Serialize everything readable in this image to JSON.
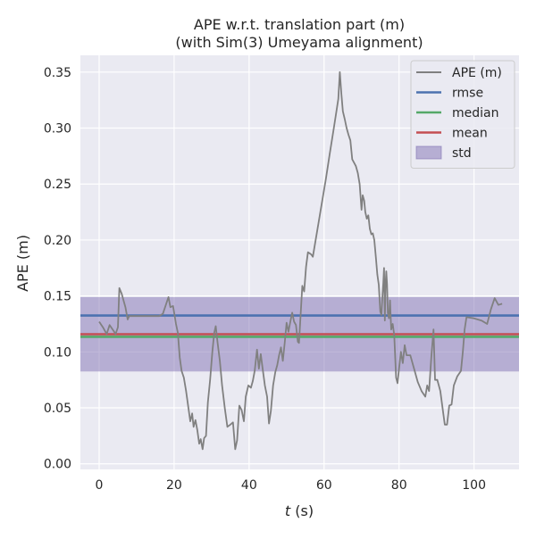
{
  "chart_data": {
    "type": "line",
    "title": "APE w.r.t. translation part (m)",
    "subtitle": "(with Sim(3) Umeyama alignment)",
    "xlabel_var": "t",
    "xlabel_unit": "(s)",
    "ylabel": "APE (m)",
    "xlim": [
      -5,
      112
    ],
    "ylim": [
      -0.005,
      0.365
    ],
    "xticks": [
      0,
      20,
      40,
      60,
      80,
      100
    ],
    "yticks": [
      0.0,
      0.05,
      0.1,
      0.15,
      0.2,
      0.25,
      0.3,
      0.35
    ],
    "grid": true,
    "legend_position": "top-right",
    "legend": [
      {
        "label": "APE (m)",
        "kind": "line",
        "color": "#808080"
      },
      {
        "label": "rmse",
        "kind": "line",
        "color": "#4c72b0"
      },
      {
        "label": "median",
        "kind": "line",
        "color": "#55a868"
      },
      {
        "label": "mean",
        "kind": "line",
        "color": "#c44e52"
      },
      {
        "label": "std",
        "kind": "patch",
        "color": "#8172b3"
      }
    ],
    "stats": {
      "rmse": 0.1325,
      "median": 0.1135,
      "mean": 0.1158,
      "std_band": [
        0.0825,
        0.149
      ]
    },
    "series": [
      {
        "name": "APE (m)",
        "color": "#808080",
        "points": [
          [
            0.0,
            0.127
          ],
          [
            1.0,
            0.122
          ],
          [
            2.0,
            0.116
          ],
          [
            2.8,
            0.124
          ],
          [
            3.6,
            0.12
          ],
          [
            4.4,
            0.116
          ],
          [
            5.0,
            0.122
          ],
          [
            5.4,
            0.157
          ],
          [
            6.0,
            0.152
          ],
          [
            7.0,
            0.14
          ],
          [
            7.6,
            0.129
          ],
          [
            8.0,
            0.132
          ],
          [
            10,
            0.132
          ],
          [
            12,
            0.132
          ],
          [
            14,
            0.132
          ],
          [
            16,
            0.132
          ],
          [
            17.0,
            0.134
          ],
          [
            18.5,
            0.149
          ],
          [
            19.0,
            0.14
          ],
          [
            19.7,
            0.141
          ],
          [
            20.5,
            0.125
          ],
          [
            21.0,
            0.117
          ],
          [
            21.5,
            0.095
          ],
          [
            22.0,
            0.083
          ],
          [
            22.6,
            0.077
          ],
          [
            23.2,
            0.065
          ],
          [
            23.8,
            0.05
          ],
          [
            24.3,
            0.038
          ],
          [
            24.8,
            0.045
          ],
          [
            25.2,
            0.033
          ],
          [
            25.7,
            0.039
          ],
          [
            26.2,
            0.03
          ],
          [
            26.7,
            0.018
          ],
          [
            27.1,
            0.022
          ],
          [
            27.6,
            0.013
          ],
          [
            28.0,
            0.023
          ],
          [
            28.5,
            0.025
          ],
          [
            29.0,
            0.055
          ],
          [
            29.6,
            0.075
          ],
          [
            30.2,
            0.1
          ],
          [
            30.7,
            0.117
          ],
          [
            31.1,
            0.123
          ],
          [
            31.6,
            0.108
          ],
          [
            32.2,
            0.092
          ],
          [
            32.8,
            0.07
          ],
          [
            33.5,
            0.05
          ],
          [
            34.2,
            0.033
          ],
          [
            35.0,
            0.035
          ],
          [
            35.7,
            0.037
          ],
          [
            36.3,
            0.013
          ],
          [
            36.8,
            0.021
          ],
          [
            37.4,
            0.052
          ],
          [
            38.0,
            0.048
          ],
          [
            38.6,
            0.038
          ],
          [
            39.1,
            0.06
          ],
          [
            39.8,
            0.07
          ],
          [
            40.5,
            0.068
          ],
          [
            41.0,
            0.074
          ],
          [
            41.5,
            0.083
          ],
          [
            42.1,
            0.102
          ],
          [
            42.6,
            0.085
          ],
          [
            43.1,
            0.098
          ],
          [
            43.6,
            0.085
          ],
          [
            44.2,
            0.07
          ],
          [
            44.8,
            0.06
          ],
          [
            45.3,
            0.036
          ],
          [
            45.8,
            0.047
          ],
          [
            46.4,
            0.07
          ],
          [
            47.0,
            0.082
          ],
          [
            47.5,
            0.088
          ],
          [
            48.0,
            0.097
          ],
          [
            48.5,
            0.104
          ],
          [
            49.0,
            0.092
          ],
          [
            49.5,
            0.108
          ],
          [
            50.0,
            0.126
          ],
          [
            50.5,
            0.118
          ],
          [
            51.0,
            0.127
          ],
          [
            51.5,
            0.135
          ],
          [
            52.0,
            0.127
          ],
          [
            52.5,
            0.124
          ],
          [
            53.0,
            0.109
          ],
          [
            53.3,
            0.108
          ],
          [
            53.7,
            0.13
          ],
          [
            54.2,
            0.159
          ],
          [
            54.7,
            0.154
          ],
          [
            55.2,
            0.176
          ],
          [
            55.7,
            0.189
          ],
          [
            56.2,
            0.188
          ],
          [
            56.6,
            0.187
          ],
          [
            57.0,
            0.185
          ],
          [
            57.5,
            0.195
          ],
          [
            58.5,
            0.215
          ],
          [
            59.5,
            0.235
          ],
          [
            60.5,
            0.255
          ],
          [
            61.5,
            0.277
          ],
          [
            62.5,
            0.298
          ],
          [
            63.3,
            0.315
          ],
          [
            63.8,
            0.326
          ],
          [
            64.2,
            0.35
          ],
          [
            64.6,
            0.331
          ],
          [
            65.0,
            0.315
          ],
          [
            65.5,
            0.308
          ],
          [
            66.0,
            0.3
          ],
          [
            66.5,
            0.294
          ],
          [
            67.0,
            0.289
          ],
          [
            67.5,
            0.272
          ],
          [
            68.0,
            0.269
          ],
          [
            68.5,
            0.266
          ],
          [
            69.0,
            0.26
          ],
          [
            69.5,
            0.25
          ],
          [
            70.0,
            0.227
          ],
          [
            70.3,
            0.24
          ],
          [
            70.7,
            0.235
          ],
          [
            71.0,
            0.225
          ],
          [
            71.4,
            0.219
          ],
          [
            71.8,
            0.222
          ],
          [
            72.2,
            0.21
          ],
          [
            72.6,
            0.205
          ],
          [
            73.0,
            0.206
          ],
          [
            73.4,
            0.2
          ],
          [
            73.8,
            0.185
          ],
          [
            74.2,
            0.169
          ],
          [
            74.6,
            0.16
          ],
          [
            75.0,
            0.136
          ],
          [
            75.3,
            0.133
          ],
          [
            75.6,
            0.151
          ],
          [
            75.8,
            0.162
          ],
          [
            76.0,
            0.175
          ],
          [
            76.2,
            0.128
          ],
          [
            76.4,
            0.16
          ],
          [
            76.6,
            0.172
          ],
          [
            76.8,
            0.16
          ],
          [
            77.0,
            0.135
          ],
          [
            77.3,
            0.13
          ],
          [
            77.6,
            0.146
          ],
          [
            77.9,
            0.12
          ],
          [
            78.3,
            0.125
          ],
          [
            78.7,
            0.115
          ],
          [
            79.2,
            0.077
          ],
          [
            79.6,
            0.072
          ],
          [
            80.0,
            0.085
          ],
          [
            80.5,
            0.1
          ],
          [
            81.0,
            0.09
          ],
          [
            81.5,
            0.106
          ],
          [
            82.0,
            0.097
          ],
          [
            83.0,
            0.097
          ],
          [
            84.0,
            0.085
          ],
          [
            85.0,
            0.073
          ],
          [
            86.0,
            0.065
          ],
          [
            87.0,
            0.06
          ],
          [
            87.5,
            0.07
          ],
          [
            88.0,
            0.065
          ],
          [
            88.6,
            0.095
          ],
          [
            89.2,
            0.12
          ],
          [
            89.6,
            0.075
          ],
          [
            90.2,
            0.075
          ],
          [
            91.0,
            0.065
          ],
          [
            91.8,
            0.045
          ],
          [
            92.2,
            0.035
          ],
          [
            92.8,
            0.035
          ],
          [
            93.4,
            0.052
          ],
          [
            94.0,
            0.053
          ],
          [
            94.6,
            0.07
          ],
          [
            95.5,
            0.078
          ],
          [
            96.5,
            0.083
          ],
          [
            97.0,
            0.1
          ],
          [
            97.5,
            0.12
          ],
          [
            98.0,
            0.131
          ],
          [
            100,
            0.13
          ],
          [
            102,
            0.128
          ],
          [
            103.5,
            0.125
          ],
          [
            104.5,
            0.138
          ],
          [
            105.5,
            0.148
          ],
          [
            106.5,
            0.142
          ],
          [
            107.5,
            0.143
          ]
        ]
      }
    ]
  }
}
